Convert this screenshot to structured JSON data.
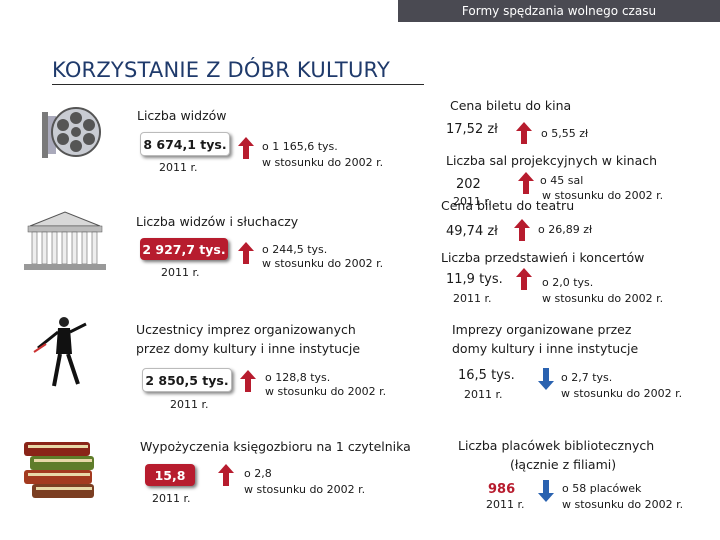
{
  "header": {
    "section": "Formy spędzania wolnego czasu",
    "title": "KORZYSTANIE Z DÓBR KULTURY"
  },
  "left": {
    "cinema": {
      "label": "Liczba widzów",
      "value": "8 674,1 tys.",
      "year": "2011 r.",
      "change_line1": "o  1 165,6 tys.",
      "change_line2": "w stosunku do 2002 r."
    },
    "theatre": {
      "label": "Liczba widzów i słuchaczy",
      "value": "2 927,7 tys.",
      "year": "2011 r.",
      "change_line1": "o 244,5 tys.",
      "change_line2": "w stosunku do 2002 r."
    },
    "events": {
      "label_line1": "Uczestnicy imprez organizowanych",
      "label_line2": "przez domy kultury i inne instytucje",
      "value": "2 850,5 tys.",
      "year": "2011 r.",
      "change_line1": "o 128,8 tys.",
      "change_line2": "w stosunku do 2002 r."
    },
    "library": {
      "label": "Wypożyczenia księgozbioru na 1 czytelnika",
      "value": "15,8",
      "year": "2011 r.",
      "change_line1": "o  2,8",
      "change_line2": "w stosunku do 2002 r."
    }
  },
  "right": {
    "cinema_price": {
      "label": "Cena biletu do kina",
      "value": "17,52 zł",
      "change": "o  5,55 zł"
    },
    "cinema_halls": {
      "label": "Liczba sal projekcyjnych w kinach",
      "value": "202",
      "year": "2011 r.",
      "change_line1": "o  45 sal",
      "change_line2": "w stosunku do 2002 r."
    },
    "theatre_price": {
      "label": "Cena biletu do teatru",
      "value": "49,74 zł",
      "change": "o 26,89 zł"
    },
    "shows": {
      "label": "Liczba przedstawień i koncertów",
      "value": "11,9 tys.",
      "year": "2011 r.",
      "change_line1": "o 2,0 tys.",
      "change_line2": "w stosunku do 2002 r."
    },
    "events": {
      "label_line1": "Imprezy organizowane przez",
      "label_line2": "domy kultury i inne instytucje",
      "value": "16,5 tys.",
      "year": "2011 r.",
      "change_line1": "o  2,7 tys.",
      "change_line2": "w stosunku do 2002 r."
    },
    "libraries": {
      "label_line1": "Liczba placówek bibliotecznych",
      "label_line2": "(łącznie z filiami)",
      "value": "986",
      "year": "2011 r.",
      "change_line1": "o  58 placówek",
      "change_line2": "w stosunku do 2002 r."
    }
  },
  "colors": {
    "up": "#b71c2e",
    "down": "#2a62b0",
    "title": "#1f3a6b"
  },
  "icons": [
    "film-reel-icon",
    "theatre-building-icon",
    "dancer-icon",
    "books-icon"
  ]
}
